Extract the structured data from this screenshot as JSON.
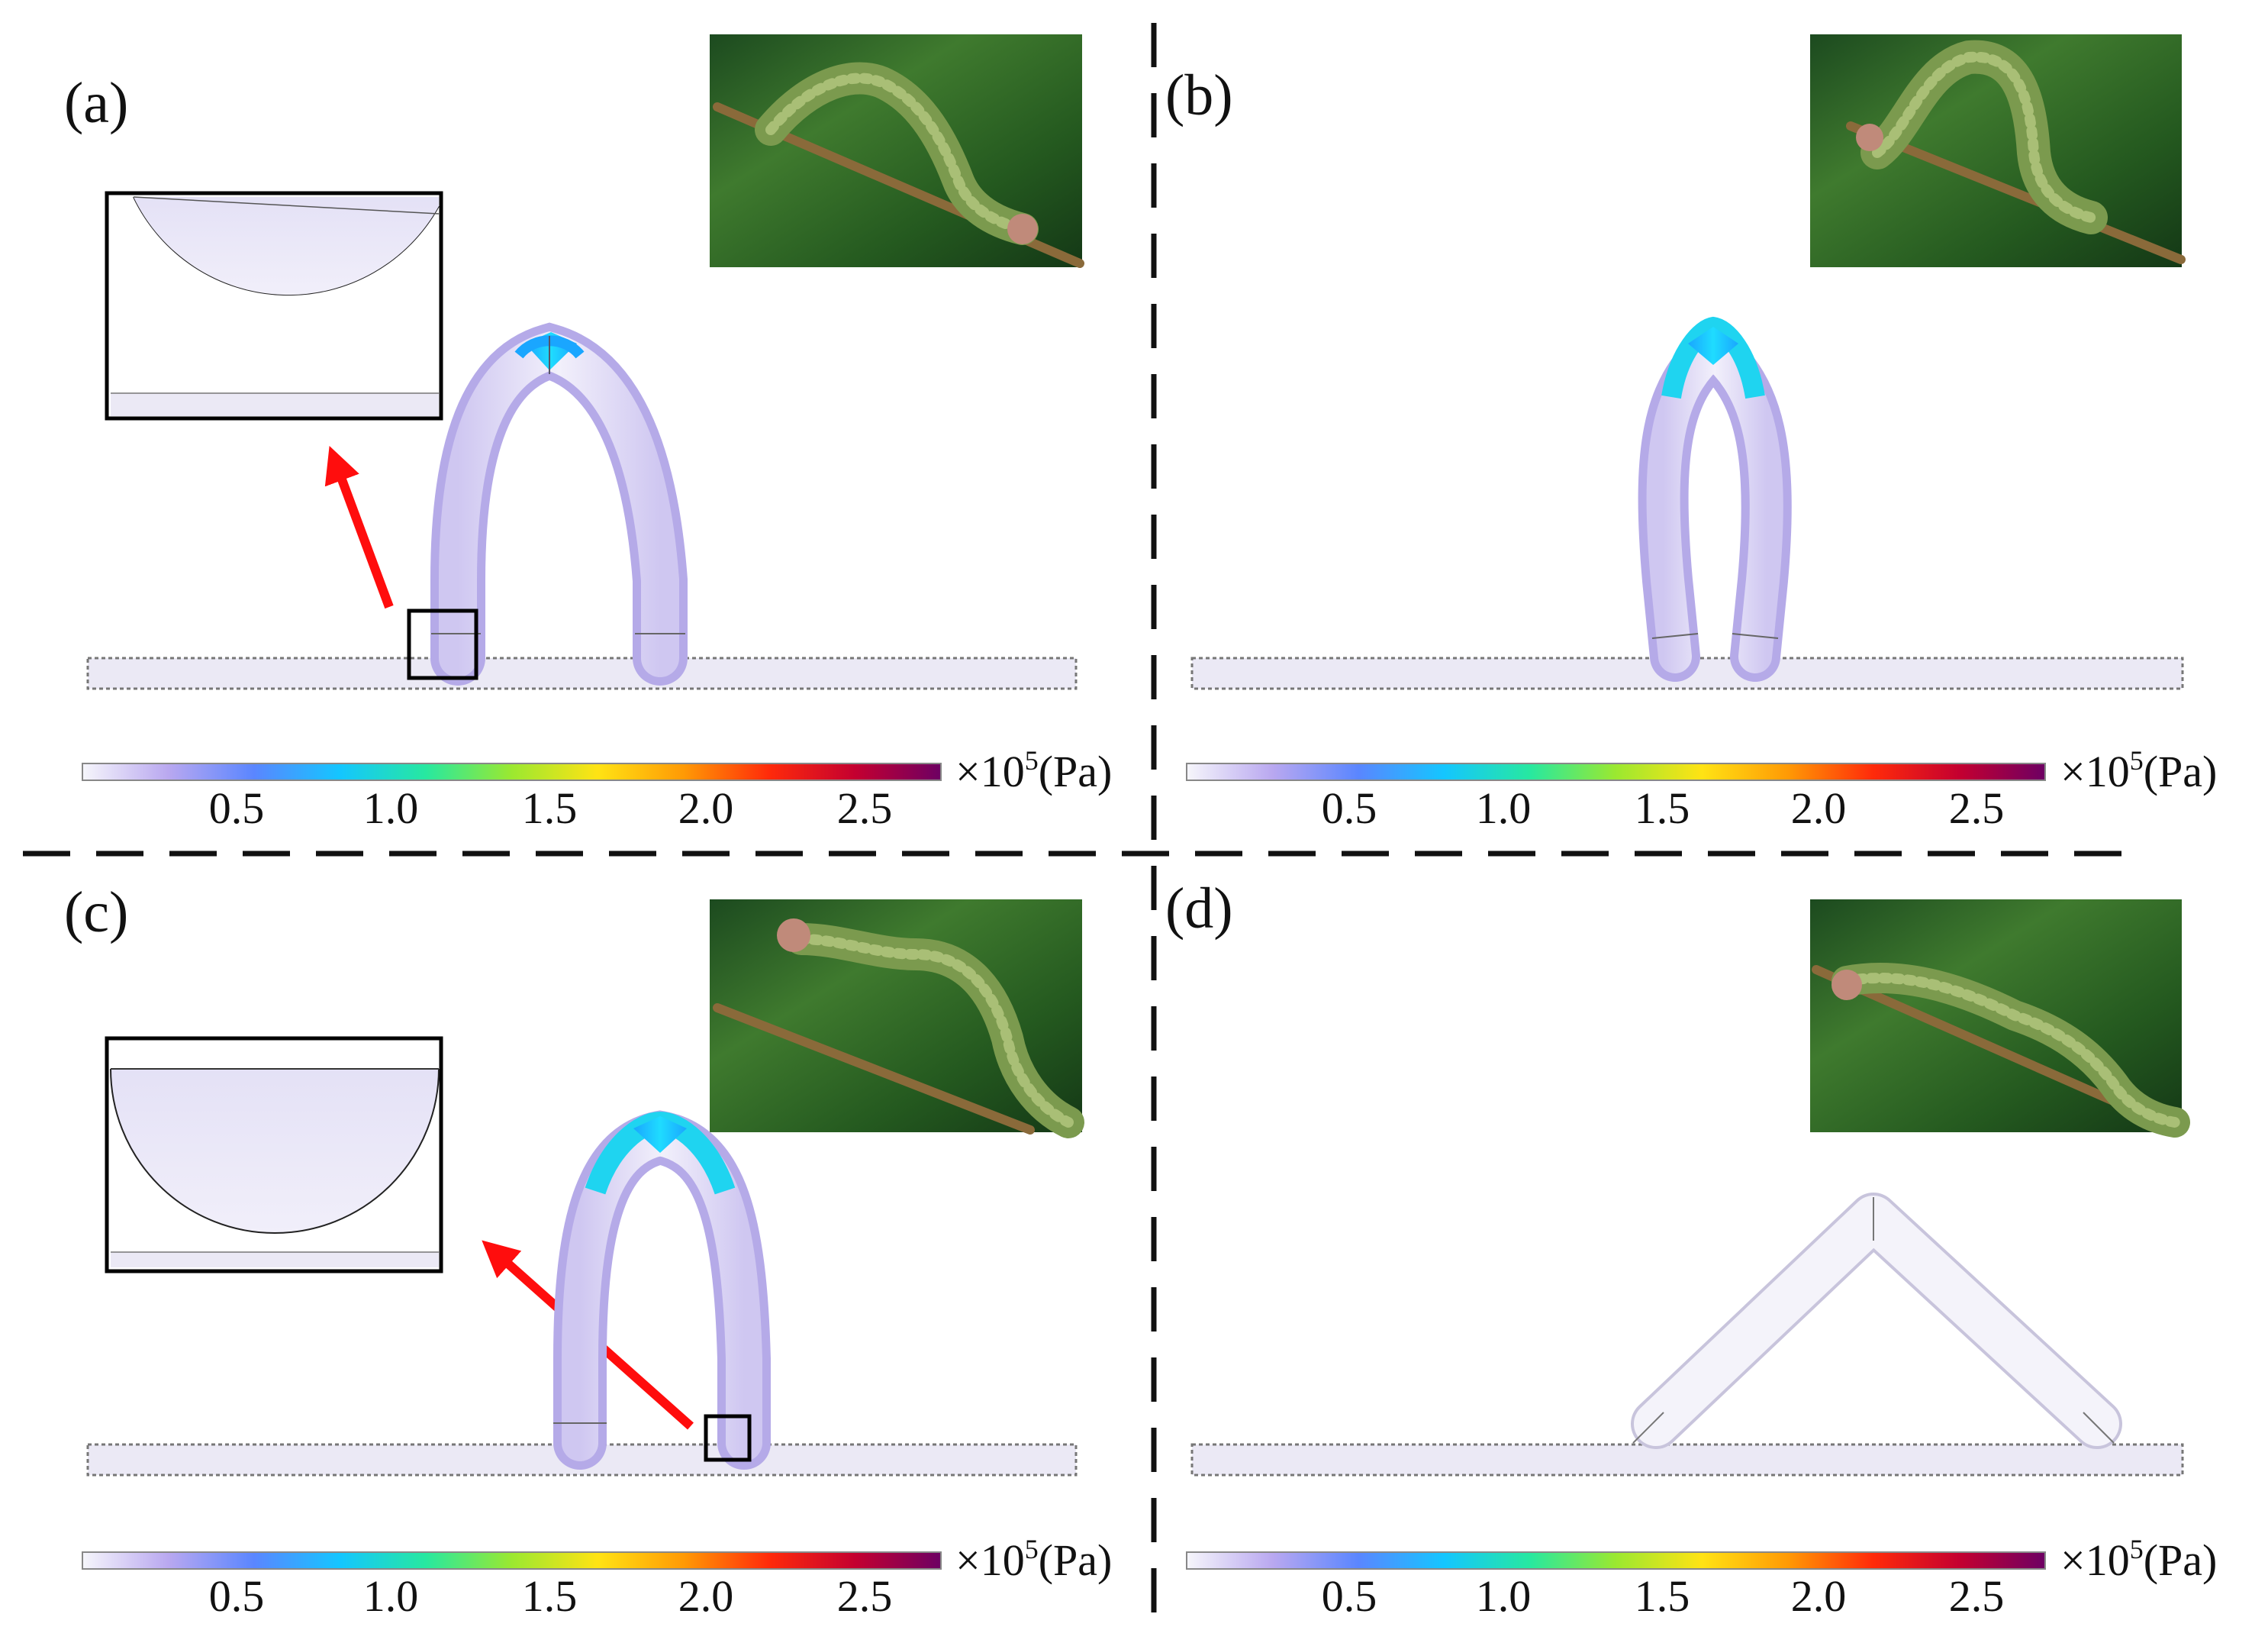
{
  "panels": [
    {
      "id": "a",
      "label": "(a)",
      "state": "arch-wide",
      "inset": true,
      "arrow": true
    },
    {
      "id": "b",
      "label": "(b)",
      "state": "arch-tight",
      "inset": false,
      "arrow": false
    },
    {
      "id": "c",
      "label": "(c)",
      "state": "arch-wide",
      "inset": true,
      "arrow": true
    },
    {
      "id": "d",
      "label": "(d)",
      "state": "extended",
      "inset": false,
      "arrow": false
    }
  ],
  "colorbar": {
    "ticks": [
      "0.5",
      "1.0",
      "1.5",
      "2.0",
      "2.5"
    ],
    "unit_prefix": "×10",
    "unit_exponent": "5",
    "unit_suffix": "(Pa)",
    "colors": [
      "#f6f6fb",
      "#b9a8f0",
      "#5a86ff",
      "#14c6ff",
      "#27e8a0",
      "#9be830",
      "#ffe314",
      "#ff9a05",
      "#ff2a0a",
      "#c40030",
      "#6d0063"
    ]
  },
  "colors": {
    "body_fill": "#d9d3f3",
    "stress_high": "#19d1f5",
    "arrow": "#ff0d0d",
    "ground_fill": "#ebe9f5"
  },
  "icons": [
    "caterpillar-photo-icon",
    "red-arrow-icon",
    "zoom-box-icon"
  ]
}
